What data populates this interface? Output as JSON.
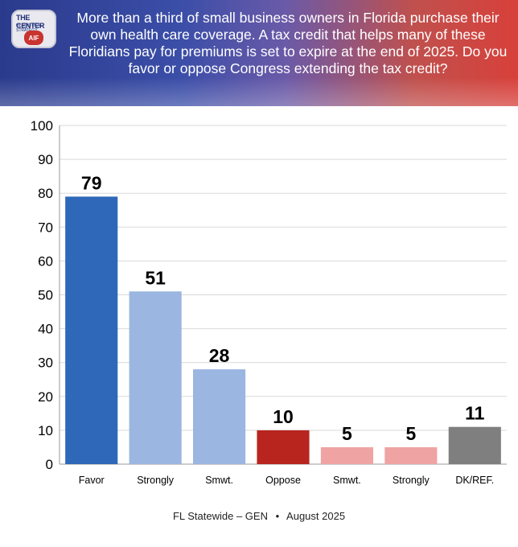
{
  "header": {
    "logo_text": "THE CENTER",
    "logo_subtext": "for POLITICAL STRATEGY",
    "logo_mark": "AIF",
    "question": "More than a third of small business owners in Florida purchase their own health care coverage. A tax credit that helps many of these Floridians pay for premiums is set to expire at the end of 2025. Do you favor or oppose Congress extending the tax credit?"
  },
  "chart_data": {
    "type": "bar",
    "categories": [
      "Favor",
      "Strongly",
      "Smwt.",
      "Oppose",
      "Smwt.",
      "Strongly",
      "DK/REF."
    ],
    "values": [
      79,
      51,
      28,
      10,
      5,
      5,
      11
    ],
    "colors": [
      "#2f68b8",
      "#9bb6e0",
      "#9bb6e0",
      "#b8251f",
      "#efa3a3",
      "#efa3a3",
      "#7f7f7f"
    ],
    "ylim": [
      0,
      100
    ],
    "yticks": [
      0,
      10,
      20,
      30,
      40,
      50,
      60,
      70,
      80,
      90,
      100
    ],
    "grid": true,
    "title": "",
    "xlabel": "",
    "ylabel": ""
  },
  "footer": {
    "left": "FL Statewide – GEN",
    "separator": "•",
    "right": "August 2025"
  }
}
